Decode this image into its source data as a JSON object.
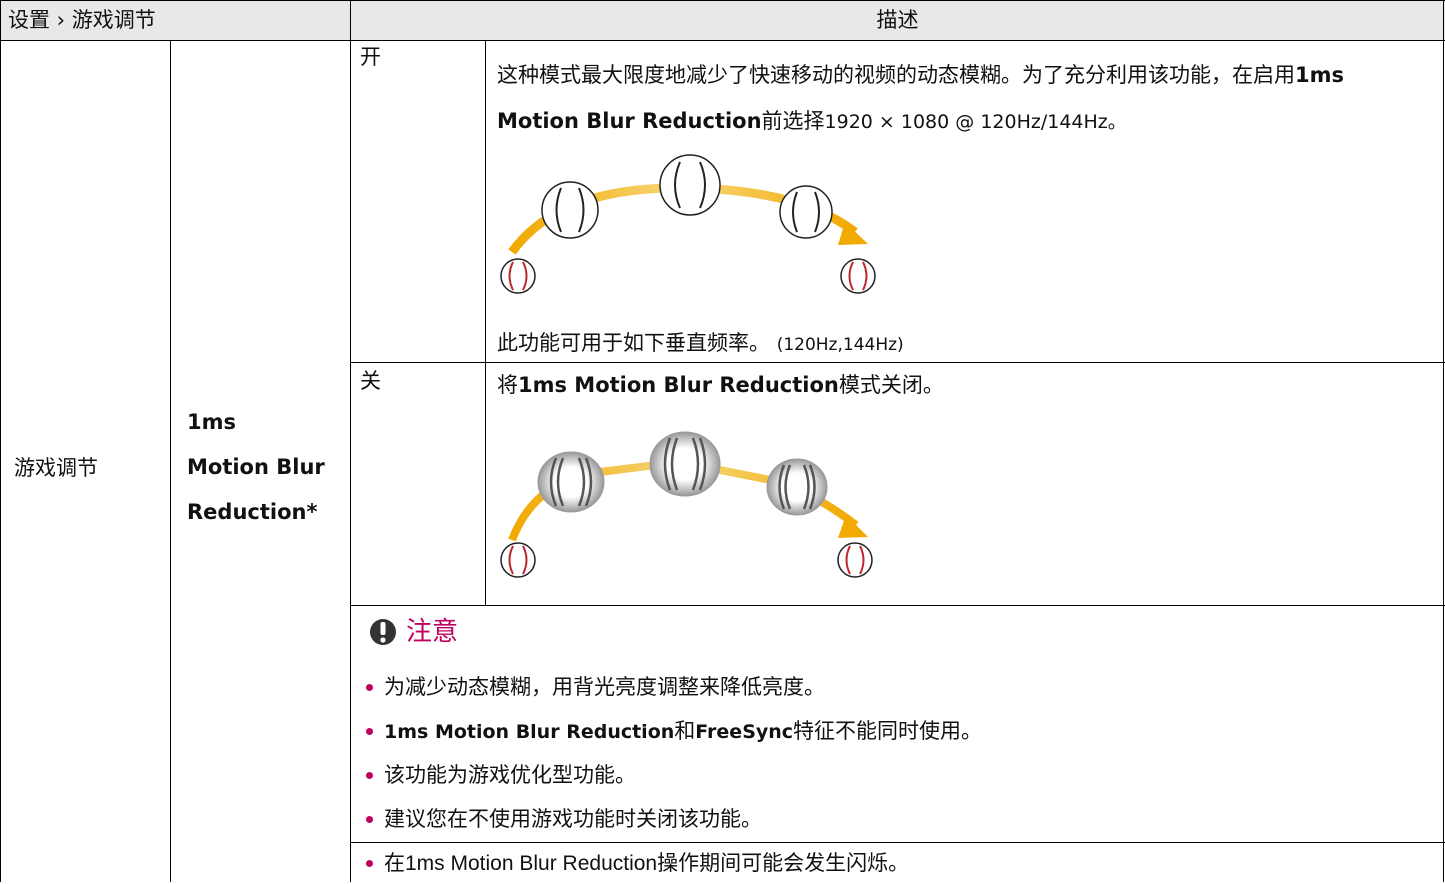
{
  "header": {
    "setting": "设置 › 游戏调节",
    "description": "描述"
  },
  "menu": "游戏调节",
  "feature": [
    "1ms",
    "Motion Blur",
    "Reduction*"
  ],
  "modes": [
    {
      "label": "开",
      "text": [
        "这种模式最大限度地减少了快速移动的视频的动态模糊。为了充分利用该功能，在启用",
        "1ms Motion Blur Reduction",
        "前选择",
        "1920 × 1080 @ 120Hz/144Hz。"
      ],
      "footnote": [
        "此功能可用于如下垂直频率。",
        "(120Hz,144Hz)"
      ]
    },
    {
      "label": "关",
      "text": [
        "将",
        "1ms Motion Blur Reduction",
        "模式关闭。"
      ]
    }
  ],
  "note": {
    "title": "注意",
    "items": [
      [
        "为减少动态模糊，用背光亮度调整来降低亮度。"
      ],
      [
        "1ms Motion Blur Reduction",
        "和",
        "FreeSync",
        "特征不能同时使用。"
      ],
      [
        "该功能为游戏优化型功能。"
      ],
      [
        "建议您在不使用游戏功能时关闭该功能。"
      ],
      [
        "在1ms Motion Blur Reduction操作期间可能会发生闪烁。"
      ]
    ]
  }
}
